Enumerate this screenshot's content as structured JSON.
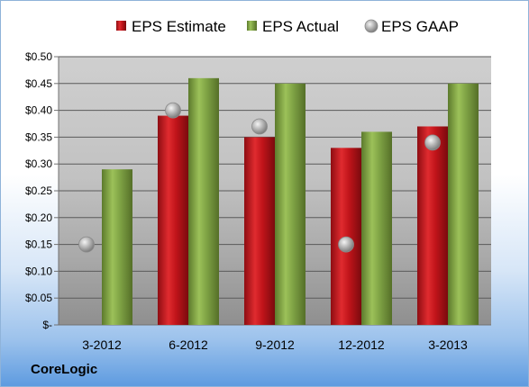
{
  "company": "CoreLogic",
  "chart_data": {
    "type": "bar",
    "categories": [
      "3-2012",
      "6-2012",
      "9-2012",
      "12-2012",
      "3-2013"
    ],
    "series": [
      {
        "name": "EPS Estimate",
        "kind": "bar",
        "color": "#c0141a",
        "values": [
          null,
          0.39,
          0.35,
          0.33,
          0.37
        ]
      },
      {
        "name": "EPS Actual",
        "kind": "bar",
        "color": "#7ea244",
        "values": [
          0.29,
          0.46,
          0.45,
          0.36,
          0.45
        ]
      },
      {
        "name": "EPS GAAP",
        "kind": "marker",
        "color": "#a8a8a8",
        "values": [
          0.15,
          0.4,
          0.37,
          0.15,
          0.34
        ]
      }
    ],
    "ylim": [
      0,
      0.5
    ],
    "yticks": [
      0,
      0.05,
      0.1,
      0.15,
      0.2,
      0.25,
      0.3,
      0.35,
      0.4,
      0.45,
      0.5
    ],
    "yticklabels": [
      "$-",
      "$0.05",
      "$0.10",
      "$0.15",
      "$0.20",
      "$0.25",
      "$0.30",
      "$0.35",
      "$0.40",
      "$0.45",
      "$0.50"
    ],
    "grid": true,
    "legend": "top"
  }
}
